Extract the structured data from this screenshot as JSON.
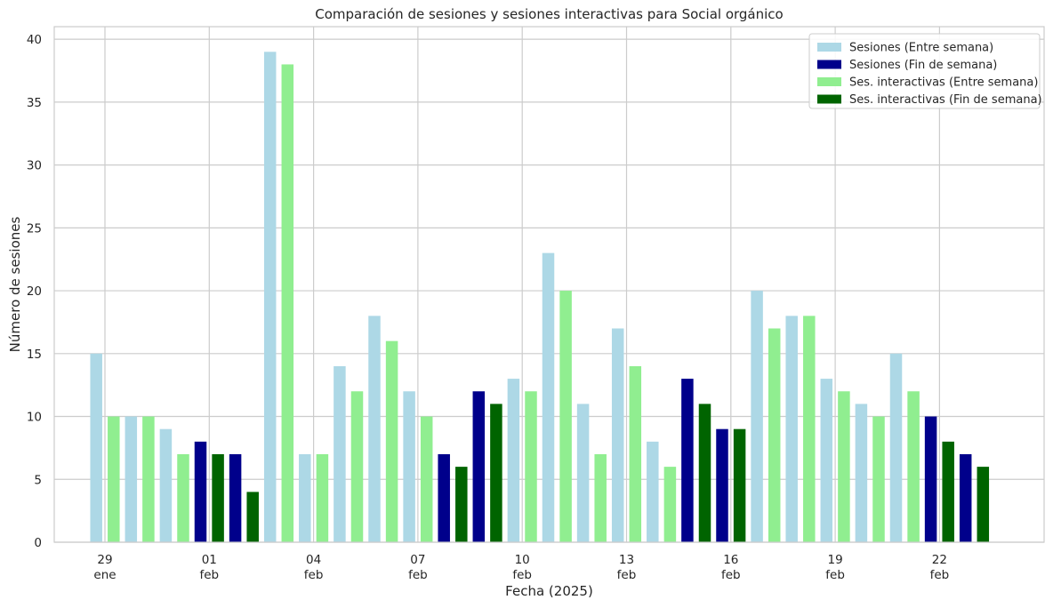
{
  "chart_data": {
    "type": "bar",
    "title": "Comparación de sesiones y sesiones interactivas para Social orgánico",
    "xlabel": "Fecha (2025)",
    "ylabel": "Número de sesiones",
    "ylim": [
      0,
      41
    ],
    "yticks": [
      0,
      5,
      10,
      15,
      20,
      25,
      30,
      35,
      40
    ],
    "grid": true,
    "legend_position": "top-right",
    "x_tick_labels": [
      {
        "date": "2025-01-29",
        "day": "29",
        "month": "ene"
      },
      {
        "date": "2025-02-01",
        "day": "01",
        "month": "feb"
      },
      {
        "date": "2025-02-04",
        "day": "04",
        "month": "feb"
      },
      {
        "date": "2025-02-07",
        "day": "07",
        "month": "feb"
      },
      {
        "date": "2025-02-10",
        "day": "10",
        "month": "feb"
      },
      {
        "date": "2025-02-13",
        "day": "13",
        "month": "feb"
      },
      {
        "date": "2025-02-16",
        "day": "16",
        "month": "feb"
      },
      {
        "date": "2025-02-19",
        "day": "19",
        "month": "feb"
      },
      {
        "date": "2025-02-22",
        "day": "22",
        "month": "feb"
      }
    ],
    "dates": [
      "2025-01-29",
      "2025-01-30",
      "2025-01-31",
      "2025-02-01",
      "2025-02-02",
      "2025-02-03",
      "2025-02-04",
      "2025-02-05",
      "2025-02-06",
      "2025-02-07",
      "2025-02-08",
      "2025-02-09",
      "2025-02-10",
      "2025-02-11",
      "2025-02-12",
      "2025-02-13",
      "2025-02-14",
      "2025-02-15",
      "2025-02-16",
      "2025-02-17",
      "2025-02-18",
      "2025-02-19",
      "2025-02-20",
      "2025-02-21",
      "2025-02-22",
      "2025-02-23"
    ],
    "weekend": [
      false,
      false,
      false,
      true,
      true,
      false,
      false,
      false,
      false,
      false,
      true,
      true,
      false,
      false,
      false,
      false,
      false,
      true,
      true,
      false,
      false,
      false,
      false,
      false,
      true,
      true
    ],
    "series": [
      {
        "name": "Sesiones",
        "values": [
          15,
          10,
          9,
          8,
          7,
          39,
          7,
          14,
          18,
          12,
          7,
          12,
          13,
          23,
          11,
          17,
          8,
          13,
          9,
          20,
          18,
          13,
          11,
          15,
          10,
          7
        ]
      },
      {
        "name": "Ses. interactivas",
        "values": [
          10,
          10,
          7,
          7,
          4,
          38,
          7,
          12,
          16,
          10,
          6,
          11,
          12,
          20,
          7,
          14,
          6,
          11,
          9,
          17,
          18,
          12,
          10,
          12,
          8,
          6
        ]
      }
    ],
    "colors": {
      "sesiones_weekday": "#add8e6",
      "sesiones_weekend": "#00008b",
      "interactivas_weekday": "#90ee90",
      "interactivas_weekend": "#006400",
      "grid": "#cccccc",
      "spine": "#cccccc"
    },
    "legend": [
      {
        "label": "Sesiones (Entre semana)",
        "color": "#add8e6"
      },
      {
        "label": "Sesiones (Fin de semana)",
        "color": "#00008b"
      },
      {
        "label": "Ses. interactivas (Entre semana)",
        "color": "#90ee90"
      },
      {
        "label": "Ses. interactivas (Fin de semana)",
        "color": "#006400"
      }
    ]
  }
}
